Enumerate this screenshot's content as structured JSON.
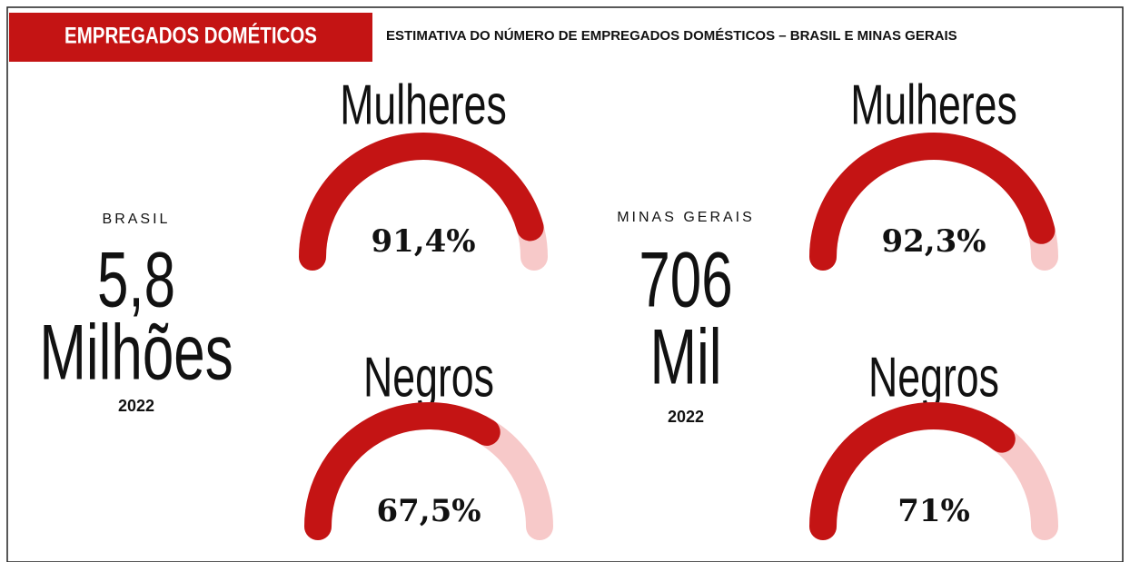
{
  "header": {
    "tag": "EMPREGADOS DOMÉTICOS",
    "title": "ESTIMATIVA DO NÚMERO DE EMPREGADOS DOMÉSTICOS – BRASIL E MINAS GERAIS"
  },
  "regions": [
    {
      "name": "BRASIL",
      "total": "5,8",
      "unit": "Milhões",
      "year": "2022"
    },
    {
      "name": "MINAS GERAIS",
      "total": "706",
      "unit": "Mil",
      "year": "2022"
    }
  ],
  "chart_data": [
    {
      "type": "gauge",
      "title": "Mulheres",
      "value": 91.4,
      "value_label": "91,4%",
      "ylim": [
        0,
        100
      ],
      "color": "#c41414",
      "track_color": "#f7c9c9"
    },
    {
      "type": "gauge",
      "title": "Negros",
      "value": 67.5,
      "value_label": "67,5%",
      "ylim": [
        0,
        100
      ],
      "color": "#c41414",
      "track_color": "#f7c9c9"
    },
    {
      "type": "gauge",
      "title": "Mulheres",
      "value": 92.3,
      "value_label": "92,3%",
      "ylim": [
        0,
        100
      ],
      "color": "#c41414",
      "track_color": "#f7c9c9"
    },
    {
      "type": "gauge",
      "title": "Negros",
      "value": 71,
      "value_label": "71%",
      "ylim": [
        0,
        100
      ],
      "color": "#c41414",
      "track_color": "#f7c9c9"
    }
  ]
}
